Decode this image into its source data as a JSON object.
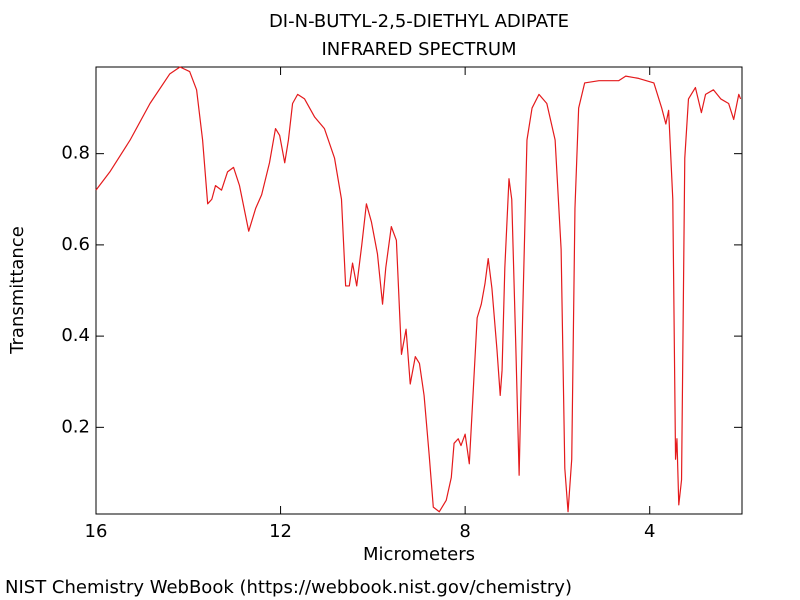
{
  "chart_data": {
    "type": "line",
    "title": "DI-N-BUTYL-2,5-DIETHYL ADIPATE",
    "subtitle": "INFRARED SPECTRUM",
    "xlabel": "Micrometers",
    "ylabel": "Transmittance",
    "source": "NIST Chemistry WebBook (https://webbook.nist.gov/chemistry)",
    "color": "#e41a1c",
    "xlim": [
      16,
      2
    ],
    "ylim": [
      0.01,
      0.99
    ],
    "xticks": [
      16,
      12,
      8,
      4
    ],
    "yticks": [
      0.2,
      0.4,
      0.6,
      0.8
    ],
    "x": [
      16.0,
      15.7,
      15.26,
      14.83,
      14.4,
      14.18,
      13.97,
      13.82,
      13.69,
      13.58,
      13.49,
      13.41,
      13.28,
      13.15,
      13.02,
      12.89,
      12.69,
      12.54,
      12.41,
      12.24,
      12.11,
      12.02,
      11.91,
      11.83,
      11.74,
      11.63,
      11.48,
      11.26,
      11.05,
      10.83,
      10.68,
      10.59,
      10.51,
      10.44,
      10.35,
      10.24,
      10.14,
      10.03,
      9.9,
      9.79,
      9.72,
      9.6,
      9.49,
      9.38,
      9.28,
      9.19,
      9.08,
      8.99,
      8.89,
      8.78,
      8.69,
      8.56,
      8.41,
      8.3,
      8.24,
      8.15,
      8.09,
      8.0,
      7.91,
      7.83,
      7.74,
      7.65,
      7.57,
      7.5,
      7.42,
      7.31,
      7.24,
      7.2,
      7.14,
      7.05,
      6.99,
      6.9,
      6.83,
      6.75,
      6.66,
      6.55,
      6.4,
      6.23,
      6.05,
      5.92,
      5.84,
      5.77,
      5.69,
      5.62,
      5.54,
      5.41,
      5.1,
      4.67,
      4.52,
      4.24,
      3.91,
      3.74,
      3.65,
      3.59,
      3.5,
      3.44,
      3.41,
      3.37,
      3.31,
      3.24,
      3.16,
      3.01,
      2.88,
      2.79,
      2.62,
      2.46,
      2.29,
      2.18,
      2.07,
      2.03
    ],
    "values": [
      0.72,
      0.76,
      0.83,
      0.91,
      0.975,
      0.99,
      0.98,
      0.94,
      0.83,
      0.69,
      0.7,
      0.73,
      0.72,
      0.76,
      0.77,
      0.73,
      0.63,
      0.68,
      0.71,
      0.78,
      0.855,
      0.84,
      0.78,
      0.83,
      0.91,
      0.93,
      0.92,
      0.88,
      0.855,
      0.79,
      0.7,
      0.51,
      0.51,
      0.56,
      0.51,
      0.6,
      0.69,
      0.65,
      0.58,
      0.47,
      0.55,
      0.64,
      0.61,
      0.36,
      0.415,
      0.295,
      0.355,
      0.34,
      0.27,
      0.14,
      0.025,
      0.015,
      0.04,
      0.09,
      0.165,
      0.175,
      0.16,
      0.185,
      0.12,
      0.27,
      0.44,
      0.47,
      0.515,
      0.57,
      0.505,
      0.37,
      0.27,
      0.325,
      0.55,
      0.745,
      0.7,
      0.37,
      0.095,
      0.46,
      0.83,
      0.9,
      0.93,
      0.91,
      0.83,
      0.59,
      0.11,
      0.015,
      0.13,
      0.68,
      0.9,
      0.955,
      0.96,
      0.96,
      0.97,
      0.965,
      0.955,
      0.9,
      0.865,
      0.895,
      0.7,
      0.13,
      0.175,
      0.03,
      0.085,
      0.79,
      0.92,
      0.945,
      0.89,
      0.93,
      0.94,
      0.92,
      0.91,
      0.875,
      0.93,
      0.92
    ]
  }
}
